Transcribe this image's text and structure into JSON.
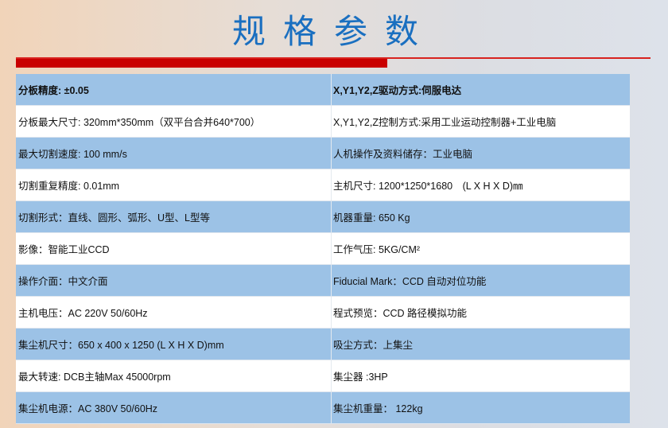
{
  "header": {
    "title": "规格参数",
    "accent_color": "#c90000",
    "title_color": "#1a6fc0"
  },
  "specs": [
    [
      "分板精度: ±0.05",
      "X,Y1,Y2,Z驱动方式:伺服电达"
    ],
    [
      "分板最大尺寸: 320mm*350mm（双平台合并640*700）",
      "X,Y1,Y2,Z控制方式:采用工业运动控制器+工业电脑"
    ],
    [
      "最大切割速度: 100 mm/s",
      "人机操作及资料储存：工业电脑"
    ],
    [
      "切割重复精度: 0.01mm",
      "主机尺寸: 1200*1250*1680　(L X H X D)㎜"
    ],
    [
      "切割形式：直线、圆形、弧形、U型、L型等",
      "机器重量: 650 Kg"
    ],
    [
      "影像：智能工业CCD",
      "工作气压: 5KG/CM²"
    ],
    [
      "操作介面：中文介面",
      "Fiducial Mark：CCD 自动对位功能"
    ],
    [
      "主机电压：AC 220V 50/60Hz",
      "程式预览：CCD 路径模拟功能"
    ],
    [
      "集尘机尺寸：650 x 400 x 1250 (L X H X D)mm",
      "吸尘方式：上集尘"
    ],
    [
      "最大转速: DCB主轴Max 45000rpm",
      "集尘器 :3HP"
    ],
    [
      "集尘机电源：AC 380V 50/60Hz",
      "集尘机重量： 122kg"
    ]
  ]
}
